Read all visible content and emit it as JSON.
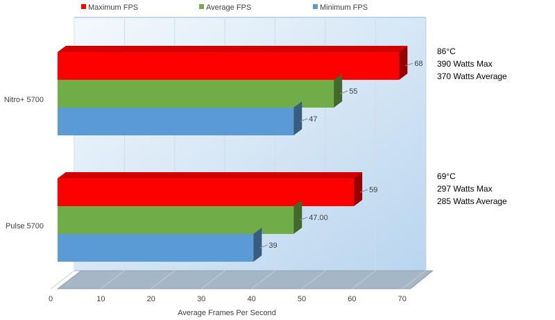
{
  "chart_data": {
    "type": "bar",
    "orientation": "horizontal",
    "style": "3d",
    "categories": [
      "Nitro+ 5700",
      "Pulse 5700"
    ],
    "series": [
      {
        "name": "Maximum FPS",
        "values": [
          68,
          59
        ],
        "labels": [
          "68",
          "59"
        ],
        "color": "#ff0000"
      },
      {
        "name": "Average FPS",
        "values": [
          55,
          47
        ],
        "labels": [
          "55",
          "47.00"
        ],
        "color": "#70ad47"
      },
      {
        "name": "Minimum FPS",
        "values": [
          47,
          39
        ],
        "labels": [
          "47",
          "39"
        ],
        "color": "#5b9bd5"
      }
    ],
    "xlabel": "Average Frames Per Second",
    "ylabel": "",
    "xlim": [
      0,
      70
    ],
    "xticks": [
      "0",
      "10",
      "20",
      "30",
      "40",
      "50",
      "60",
      "70"
    ],
    "grid": true,
    "legend_position": "top"
  },
  "annotations": [
    {
      "category": "Nitro+ 5700",
      "lines": [
        "86°C",
        "390 Watts Max",
        "370 Watts Average"
      ]
    },
    {
      "category": "Pulse 5700",
      "lines": [
        "69°C",
        "297 Watts Max",
        "285 Watts Average"
      ]
    }
  ]
}
